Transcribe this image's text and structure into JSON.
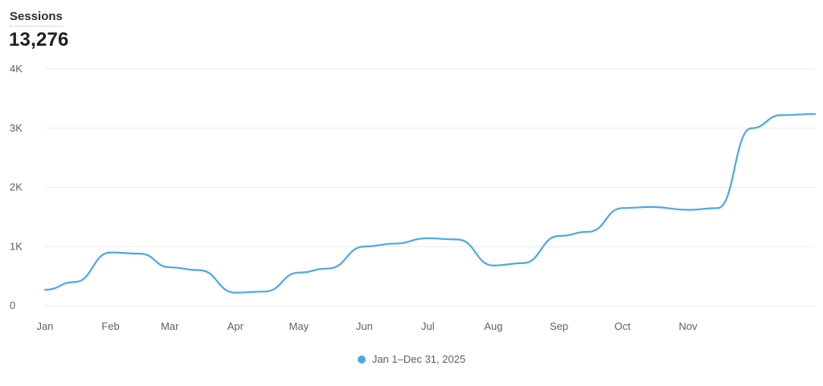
{
  "metric": {
    "title": "Sessions",
    "value": "13,276"
  },
  "legend": {
    "label": "Jan 1–Dec 31, 2025"
  },
  "colors": {
    "series": "#4ea8e4",
    "grid": "#ebebeb",
    "tick": "#616161"
  },
  "chart_data": {
    "type": "line",
    "title": "",
    "xlabel": "",
    "ylabel": "",
    "ylim": [
      0,
      4000
    ],
    "yticks": [
      0,
      1000,
      2000,
      3000,
      4000
    ],
    "ytick_labels": [
      "0",
      "1K",
      "2K",
      "3K",
      "4K"
    ],
    "x_tick_labels": [
      "Jan",
      "Feb",
      "Mar",
      "Apr",
      "May",
      "Jun",
      "Jul",
      "Aug",
      "Sep",
      "Oct",
      "Nov"
    ],
    "grid": true,
    "legend_position": "bottom-center",
    "series": [
      {
        "name": "Jan 1–Dec 31, 2025",
        "x": [
          "2025-01-01",
          "2025-01-15",
          "2025-02-01",
          "2025-02-15",
          "2025-03-01",
          "2025-03-15",
          "2025-04-01",
          "2025-04-15",
          "2025-05-01",
          "2025-05-15",
          "2025-06-01",
          "2025-06-15",
          "2025-07-01",
          "2025-07-15",
          "2025-08-01",
          "2025-08-15",
          "2025-09-01",
          "2025-09-15",
          "2025-10-01",
          "2025-10-15",
          "2025-11-01",
          "2025-11-15",
          "2025-12-01",
          "2025-12-15",
          "2025-12-31"
        ],
        "values": [
          270,
          400,
          900,
          880,
          650,
          600,
          220,
          240,
          560,
          630,
          1000,
          1050,
          1140,
          1120,
          680,
          720,
          1180,
          1250,
          1650,
          1670,
          1620,
          1650,
          3000,
          3220,
          3240
        ]
      }
    ]
  }
}
